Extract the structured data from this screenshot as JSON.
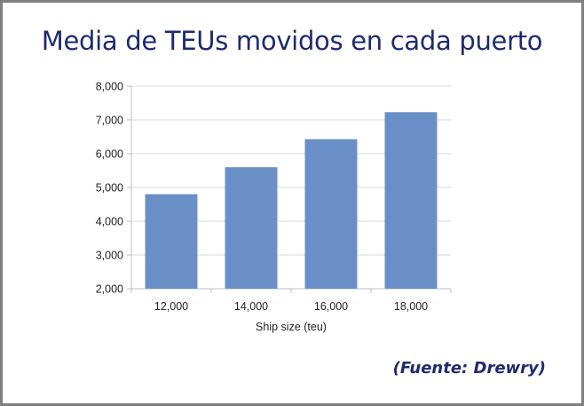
{
  "chart_data": {
    "type": "bar",
    "title": "Media de TEUs movidos en cada puerto",
    "xlabel": "Ship size (teu)",
    "ylabel": "",
    "categories": [
      "12,000",
      "14,000",
      "16,000",
      "18,000"
    ],
    "values": [
      4800,
      5600,
      6430,
      7230
    ],
    "ylim": [
      2000,
      8000
    ],
    "yticks": [
      "2,000",
      "3,000",
      "4,000",
      "5,000",
      "6,000",
      "7,000",
      "8,000"
    ],
    "ytick_values": [
      2000,
      3000,
      4000,
      5000,
      6000,
      7000,
      8000
    ],
    "grid": true,
    "legend": "none",
    "bar_color": "#6a8fc7",
    "gridline_color": "#d9d9d9",
    "axis_color": "#bfbfbf"
  },
  "source": "(Fuente: Drewry)",
  "colors": {
    "title": "#1f2a6e",
    "frame": "#7f7f7f"
  }
}
